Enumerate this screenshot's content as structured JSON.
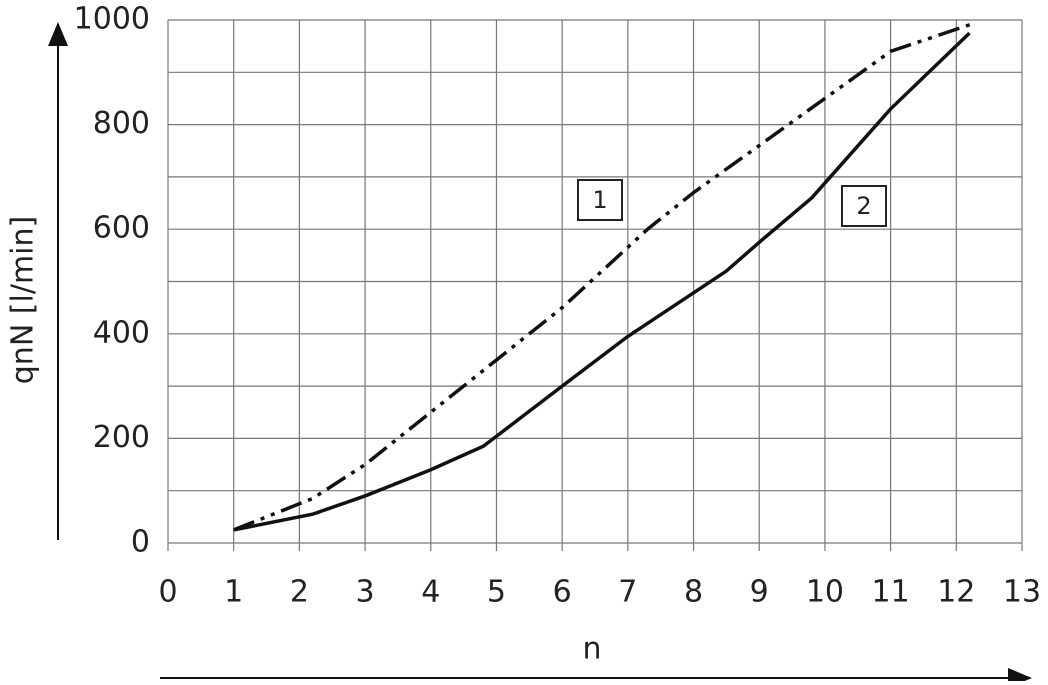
{
  "chart_data": {
    "type": "line",
    "x_label": "n",
    "y_label": "qnN [l/min]",
    "xlim": [
      0,
      13
    ],
    "xticks": [
      0,
      1,
      2,
      3,
      4,
      5,
      6,
      7,
      8,
      9,
      10,
      11,
      12,
      13
    ],
    "ylim": [
      0,
      1000
    ],
    "yticks": [
      0,
      200,
      400,
      600,
      800,
      1000
    ],
    "y_minor_grid": [
      100,
      300,
      500,
      700,
      900
    ],
    "grid": true,
    "series": [
      {
        "name": "1",
        "color": "#111111",
        "style": "dashdotdot",
        "x": [
          1,
          2.2,
          3,
          4,
          5,
          6,
          7.3,
          8,
          9,
          10,
          11,
          12.3
        ],
        "values": [
          25,
          85,
          150,
          250,
          350,
          450,
          600,
          670,
          760,
          850,
          940,
          995
        ]
      },
      {
        "name": "2",
        "color": "#111111",
        "style": "solid",
        "x": [
          1,
          2.2,
          3,
          4,
          4.8,
          6,
          7,
          8.5,
          9,
          9.8,
          11,
          12.2
        ],
        "values": [
          25,
          55,
          90,
          140,
          185,
          300,
          395,
          520,
          575,
          660,
          830,
          975
        ]
      }
    ]
  }
}
